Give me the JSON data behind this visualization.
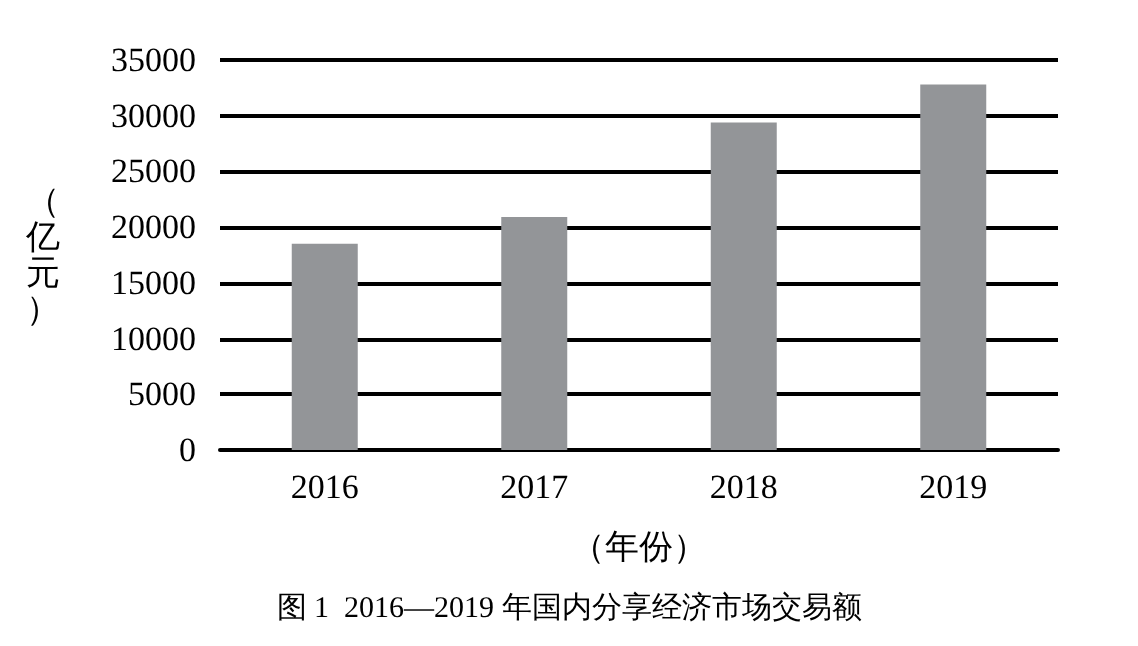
{
  "chart_data": {
    "type": "bar",
    "title": "图 1  2016—2019 年国内分享经济市场交易额",
    "xlabel": "（年份）",
    "ylabel": "（亿元）",
    "categories": [
      "2016",
      "2017",
      "2018",
      "2019"
    ],
    "values": [
      18500,
      20900,
      29400,
      32800
    ],
    "color": "#939598",
    "ylim": [
      0,
      35000
    ],
    "yticks": [
      0,
      5000,
      10000,
      15000,
      20000,
      25000,
      30000,
      35000
    ],
    "grid": "y"
  }
}
